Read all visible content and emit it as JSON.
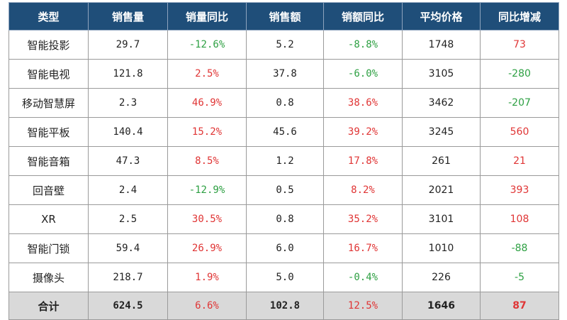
{
  "headers": [
    "类型",
    "销售量",
    "销量同比",
    "销售额",
    "销额同比",
    "平均价格",
    "同比增减"
  ],
  "rows": [
    {
      "type": "智能投影",
      "qty": "29.7",
      "qty_yoy": "-12.6%",
      "amount": "5.2",
      "amount_yoy": "-8.8%",
      "avg_price": "1748",
      "price_change": "73",
      "qty_yoy_color": "green",
      "amount_yoy_color": "green",
      "price_change_color": "red"
    },
    {
      "type": "智能电视",
      "qty": "121.8",
      "qty_yoy": "2.5%",
      "amount": "37.8",
      "amount_yoy": "-6.0%",
      "avg_price": "3105",
      "price_change": "-280",
      "qty_yoy_color": "red",
      "amount_yoy_color": "green",
      "price_change_color": "green"
    },
    {
      "type": "移动智慧屏",
      "qty": "2.3",
      "qty_yoy": "46.9%",
      "amount": "0.8",
      "amount_yoy": "38.6%",
      "avg_price": "3462",
      "price_change": "-207",
      "qty_yoy_color": "red",
      "amount_yoy_color": "red",
      "price_change_color": "green"
    },
    {
      "type": "智能平板",
      "qty": "140.4",
      "qty_yoy": "15.2%",
      "amount": "45.6",
      "amount_yoy": "39.2%",
      "avg_price": "3245",
      "price_change": "560",
      "qty_yoy_color": "red",
      "amount_yoy_color": "red",
      "price_change_color": "red"
    },
    {
      "type": "智能音箱",
      "qty": "47.3",
      "qty_yoy": "8.5%",
      "amount": "1.2",
      "amount_yoy": "17.8%",
      "avg_price": "261",
      "price_change": "21",
      "qty_yoy_color": "red",
      "amount_yoy_color": "red",
      "price_change_color": "red"
    },
    {
      "type": "回音壁",
      "qty": "2.4",
      "qty_yoy": "-12.9%",
      "amount": "0.5",
      "amount_yoy": "8.2%",
      "avg_price": "2021",
      "price_change": "393",
      "qty_yoy_color": "green",
      "amount_yoy_color": "red",
      "price_change_color": "red"
    },
    {
      "type": "XR",
      "qty": "2.5",
      "qty_yoy": "30.5%",
      "amount": "0.8",
      "amount_yoy": "35.2%",
      "avg_price": "3101",
      "price_change": "108",
      "qty_yoy_color": "red",
      "amount_yoy_color": "red",
      "price_change_color": "red"
    },
    {
      "type": "智能门锁",
      "qty": "59.4",
      "qty_yoy": "26.9%",
      "amount": "6.0",
      "amount_yoy": "16.7%",
      "avg_price": "1010",
      "price_change": "-88",
      "qty_yoy_color": "red",
      "amount_yoy_color": "red",
      "price_change_color": "green"
    },
    {
      "type": "摄像头",
      "qty": "218.7",
      "qty_yoy": "1.9%",
      "amount": "5.0",
      "amount_yoy": "-0.4%",
      "avg_price": "226",
      "price_change": "-5",
      "qty_yoy_color": "red",
      "amount_yoy_color": "green",
      "price_change_color": "green"
    }
  ],
  "total": {
    "type": "合计",
    "qty": "624.5",
    "qty_yoy": "6.6%",
    "amount": "102.8",
    "amount_yoy": "12.5%",
    "avg_price": "1646",
    "price_change": "87",
    "qty_yoy_color": "red",
    "amount_yoy_color": "red",
    "price_change_color": "red"
  },
  "colors": {
    "header_bg": "#1f4e79",
    "green": "#2ea043",
    "red": "#e03535",
    "total_bg": "#d9d9d9"
  }
}
